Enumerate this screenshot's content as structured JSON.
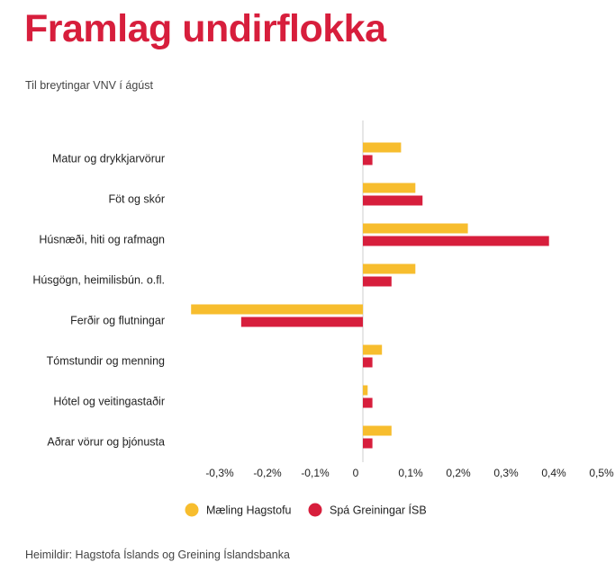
{
  "title": "Framlag undirflokka",
  "subtitle": "Til breytingar VNV í ágúst",
  "source": "Heimildir: Hagstofa Íslands og Greining Íslandsbanka",
  "colors": {
    "series1": "#f7bd2e",
    "series2": "#d71e3c",
    "title": "#d71e3c"
  },
  "chart_data": {
    "type": "bar",
    "orientation": "horizontal",
    "categories": [
      "Matur og drykkjarvörur",
      "Föt og skór",
      "Húsnæði, hiti og rafmagn",
      "Húsgögn, heimilisbún. o.fl.",
      "Ferðir og flutningar",
      "Tómstundir og menning",
      "Hótel og veitingastaðir",
      "Aðrar vörur og þjónusta"
    ],
    "series": [
      {
        "name": "Mæling Hagstofu",
        "color": "#f7bd2e",
        "values": [
          0.08,
          0.11,
          0.22,
          0.11,
          -0.36,
          0.04,
          0.01,
          0.06
        ]
      },
      {
        "name": "Spá Greiningar ÍSB",
        "color": "#d71e3c",
        "values": [
          0.02,
          0.125,
          0.39,
          0.06,
          -0.255,
          0.02,
          0.02,
          0.02
        ]
      }
    ],
    "xlim": [
      -0.35,
      0.5
    ],
    "xticks": [
      -0.3,
      -0.2,
      -0.1,
      0,
      0.1,
      0.2,
      0.3,
      0.4,
      0.5
    ],
    "xtick_labels": [
      "-0,3%",
      "-0,2%",
      "-0,1%",
      "0",
      "0,1%",
      "0,2%",
      "0,3%",
      "0,4%",
      "0,5%"
    ],
    "legend_position": "bottom",
    "grid": false
  }
}
